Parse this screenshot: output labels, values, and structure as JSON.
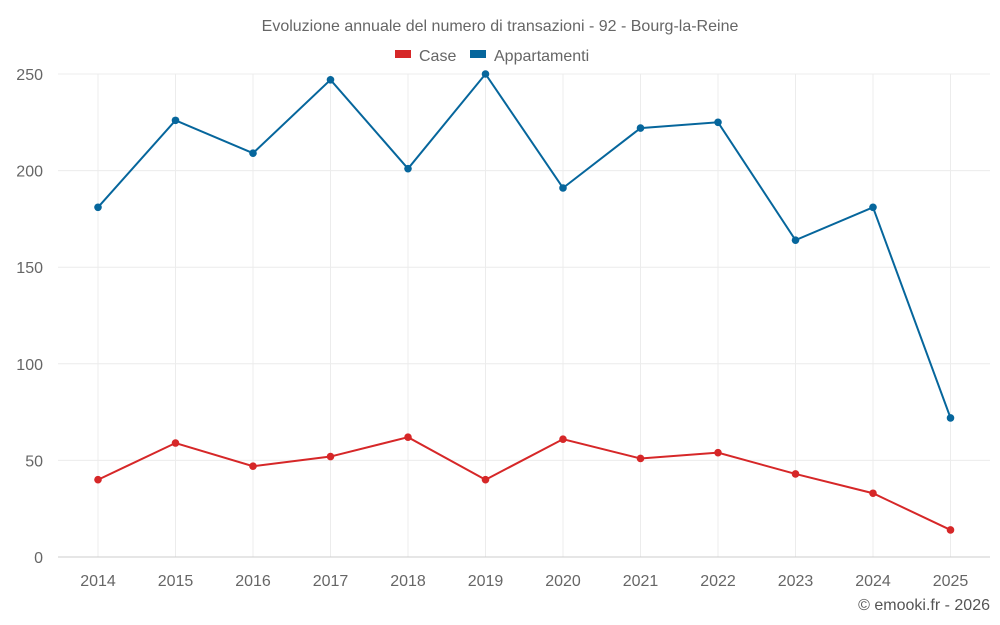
{
  "chart_data": {
    "type": "line",
    "title": "Evoluzione annuale del numero di transazioni - 92 - Bourg-la-Reine",
    "categories": [
      "2014",
      "2015",
      "2016",
      "2017",
      "2018",
      "2019",
      "2020",
      "2021",
      "2022",
      "2023",
      "2024",
      "2025"
    ],
    "series": [
      {
        "name": "Case",
        "color": "#d62728",
        "values": [
          40,
          59,
          47,
          52,
          62,
          40,
          61,
          51,
          54,
          43,
          33,
          14
        ]
      },
      {
        "name": "Appartamenti",
        "color": "#06669c",
        "values": [
          181,
          226,
          209,
          247,
          201,
          250,
          191,
          222,
          225,
          164,
          181,
          72
        ]
      }
    ],
    "yticks": [
      "0",
      "50",
      "100",
      "150",
      "200",
      "250"
    ],
    "ylim": [
      0,
      250
    ],
    "xlabel": "",
    "ylabel": "",
    "grid": true,
    "legend_position": "top-center"
  },
  "credit": "© emooki.fr - 2026"
}
